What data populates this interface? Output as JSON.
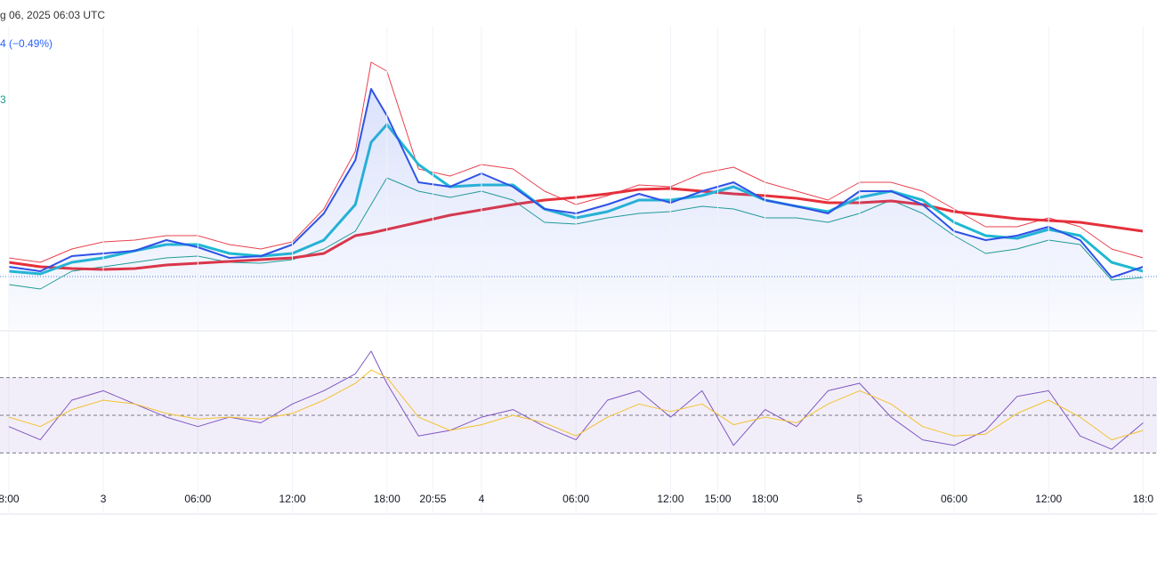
{
  "header": {
    "date_text": "g 06, 2025 06:03 UTC",
    "change_text": "4 (−0.49%)",
    "indicator_text": "3"
  },
  "chart_data": [
    {
      "type": "line",
      "x": [
        0,
        2,
        4,
        6,
        8,
        10,
        12,
        14,
        16,
        18,
        20,
        22,
        23,
        24,
        26,
        28,
        30,
        32,
        34,
        36,
        38,
        40,
        42,
        44,
        46,
        48,
        50,
        52,
        54,
        56,
        58,
        60,
        62,
        64,
        66,
        68,
        70,
        72
      ],
      "xlim": [
        -0.56,
        72.88
      ],
      "ylim": [
        0,
        340
      ],
      "reference_line": 59,
      "reference_color": "#4a7bd8",
      "series": [
        {
          "name": "upper",
          "color": "#e8424f",
          "width": 1,
          "values": [
            80,
            75,
            90,
            98,
            100,
            105,
            105,
            95,
            90,
            98,
            135,
            200,
            300,
            290,
            180,
            172,
            185,
            180,
            155,
            140,
            150,
            162,
            160,
            175,
            182,
            165,
            155,
            145,
            165,
            165,
            155,
            135,
            115,
            115,
            125,
            115,
            90,
            80
          ]
        },
        {
          "name": "lower",
          "color": "#1a9e8f",
          "width": 1,
          "values": [
            50,
            45,
            65,
            70,
            75,
            80,
            82,
            75,
            74,
            78,
            90,
            110,
            140,
            170,
            155,
            148,
            155,
            145,
            120,
            118,
            125,
            130,
            132,
            138,
            135,
            125,
            125,
            120,
            130,
            145,
            130,
            105,
            85,
            90,
            100,
            95,
            55,
            58
          ]
        },
        {
          "name": "slow",
          "color": "#e5303b",
          "width": 3,
          "values": [
            75,
            70,
            68,
            67,
            68,
            72,
            74,
            76,
            78,
            80,
            85,
            105,
            108,
            112,
            120,
            128,
            134,
            140,
            145,
            148,
            152,
            157,
            158,
            155,
            152,
            150,
            147,
            142,
            142,
            144,
            140,
            132,
            128,
            124,
            122,
            120,
            115,
            110
          ]
        },
        {
          "name": "fast",
          "color": "#1fb8d2",
          "width": 3,
          "values": [
            65,
            62,
            75,
            80,
            88,
            95,
            95,
            85,
            82,
            85,
            100,
            140,
            210,
            230,
            185,
            160,
            162,
            162,
            135,
            125,
            132,
            145,
            145,
            150,
            160,
            145,
            138,
            132,
            148,
            155,
            145,
            120,
            105,
            102,
            112,
            105,
            75,
            65
          ]
        },
        {
          "name": "price",
          "color": "#2f52e6",
          "width": 2,
          "area": true,
          "values": [
            70,
            65,
            82,
            85,
            88,
            100,
            92,
            80,
            82,
            95,
            130,
            190,
            270,
            240,
            165,
            160,
            175,
            160,
            135,
            130,
            140,
            152,
            142,
            155,
            165,
            145,
            138,
            130,
            155,
            155,
            140,
            110,
            100,
            105,
            115,
            100,
            58,
            70
          ]
        }
      ]
    },
    {
      "type": "line",
      "x": [
        0,
        2,
        4,
        6,
        8,
        10,
        12,
        14,
        16,
        18,
        20,
        22,
        23,
        24,
        26,
        28,
        30,
        32,
        34,
        36,
        38,
        40,
        42,
        44,
        46,
        48,
        50,
        52,
        54,
        56,
        58,
        60,
        62,
        64,
        66,
        68,
        70,
        72
      ],
      "xlim": [
        -0.56,
        72.88
      ],
      "ylim": [
        0,
        100
      ],
      "bands": [
        30,
        50,
        70
      ],
      "xticks": [
        {
          "value": 0,
          "label": "8:00"
        },
        {
          "value": 6,
          "label": "3"
        },
        {
          "value": 12,
          "label": "06:00"
        },
        {
          "value": 18,
          "label": "12:00"
        },
        {
          "value": 24,
          "label": "18:00"
        },
        {
          "value": 26.92,
          "label": "20:55"
        },
        {
          "value": 30,
          "label": "4"
        },
        {
          "value": 36,
          "label": "06:00"
        },
        {
          "value": 42,
          "label": "12:00"
        },
        {
          "value": 45,
          "label": "15:00"
        },
        {
          "value": 48,
          "label": "18:00"
        },
        {
          "value": 54,
          "label": "5"
        },
        {
          "value": 60,
          "label": "06:00"
        },
        {
          "value": 66,
          "label": "12:00"
        },
        {
          "value": 72,
          "label": "18:0"
        }
      ],
      "series": [
        {
          "name": "rsi",
          "color": "#7e57c2",
          "width": 1,
          "values": [
            44,
            37,
            58,
            63,
            56,
            49,
            44,
            49,
            46,
            56,
            63,
            72,
            84,
            67,
            39,
            42,
            49,
            53,
            44,
            37,
            58,
            63,
            49,
            63,
            34,
            53,
            44,
            63,
            67,
            49,
            37,
            34,
            42,
            60,
            63,
            39,
            32,
            46
          ]
        },
        {
          "name": "rsi-ma",
          "color": "#f2c230",
          "width": 1,
          "values": [
            49,
            44,
            53,
            58,
            56,
            51,
            48,
            49,
            48,
            51,
            58,
            67,
            74,
            70,
            49,
            42,
            45,
            50,
            46,
            39,
            49,
            56,
            52,
            56,
            45,
            49,
            46,
            56,
            63,
            56,
            44,
            39,
            40,
            51,
            58,
            49,
            37,
            42
          ]
        }
      ]
    }
  ]
}
